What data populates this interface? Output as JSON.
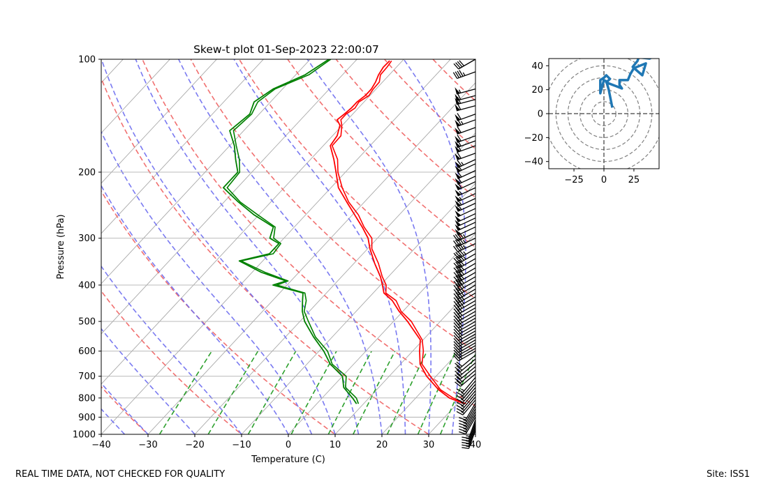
{
  "chart_data": [
    {
      "type": "skew-t",
      "title": "Skew-t plot 01-Sep-2023 22:00:07",
      "xlabel": "Temperature (C)",
      "ylabel": "Pressure (hPa)",
      "xlim": [
        -40,
        40
      ],
      "ylim": [
        1000,
        100
      ],
      "y_scale": "log",
      "x_ticks": [
        "−40",
        "−30",
        "−20",
        "−10",
        "0",
        "10",
        "20",
        "30",
        "40"
      ],
      "y_ticks": [
        "100",
        "200",
        "300",
        "400",
        "500",
        "600",
        "700",
        "800",
        "900",
        "1000"
      ],
      "grid": true,
      "series": [
        {
          "role": "temperature",
          "color": "#ff0000",
          "points": [
            [
              829,
              31.5
            ],
            [
              800,
              27.2
            ],
            [
              760,
              23.2
            ],
            [
              700,
              18.0
            ],
            [
              650,
              14.2
            ],
            [
              600,
              11.5
            ],
            [
              560,
              9.4
            ],
            [
              500,
              3.0
            ],
            [
              470,
              -0.8
            ],
            [
              440,
              -4.4
            ],
            [
              420,
              -7.7
            ],
            [
              400,
              -9.6
            ],
            [
              380,
              -11.7
            ],
            [
              350,
              -15.6
            ],
            [
              320,
              -19.5
            ],
            [
              300,
              -22.0
            ],
            [
              280,
              -25.5
            ],
            [
              260,
              -29.5
            ],
            [
              240,
              -33.8
            ],
            [
              220,
              -38.4
            ],
            [
              200,
              -42.0
            ],
            [
              185,
              -45.0
            ],
            [
              170,
              -48.5
            ],
            [
              160,
              -49.0
            ],
            [
              150,
              -50.5
            ],
            [
              145,
              -52.2
            ],
            [
              140,
              -51.8
            ],
            [
              135,
              -51.5
            ],
            [
              130,
              -51.5
            ],
            [
              125,
              -51.0
            ],
            [
              120,
              -51.0
            ],
            [
              115,
              -51.5
            ],
            [
              110,
              -52.3
            ],
            [
              105,
              -52.8
            ],
            [
              101,
              -52.7
            ]
          ]
        },
        {
          "role": "dewpoint",
          "color": "#008000",
          "points": [
            [
              829,
              8.5
            ],
            [
              800,
              6.5
            ],
            [
              750,
              2.5
            ],
            [
              700,
              0.0
            ],
            [
              650,
              -5.0
            ],
            [
              600,
              -9.0
            ],
            [
              550,
              -14.0
            ],
            [
              500,
              -19.0
            ],
            [
              470,
              -21.5
            ],
            [
              440,
              -23.6
            ],
            [
              420,
              -25.0
            ],
            [
              400,
              -33.0
            ],
            [
              390,
              -31.0
            ],
            [
              370,
              -38.0
            ],
            [
              345,
              -45.0
            ],
            [
              330,
              -40.0
            ],
            [
              310,
              -40.0
            ],
            [
              300,
              -43.0
            ],
            [
              280,
              -44.5
            ],
            [
              260,
              -51.0
            ],
            [
              240,
              -57.0
            ],
            [
              220,
              -63.0
            ],
            [
              200,
              -63.0
            ],
            [
              185,
              -66.0
            ],
            [
              170,
              -69.0
            ],
            [
              155,
              -73.0
            ],
            [
              140,
              -72.0
            ],
            [
              130,
              -73.5
            ],
            [
              120,
              -72.0
            ],
            [
              110,
              -68.0
            ],
            [
              100,
              -66.0
            ]
          ]
        }
      ],
      "wind_barbs": {
        "color": "#000000",
        "levels": [
          100,
          108,
          120,
          125,
          128,
          133,
          140,
          145,
          152,
          160,
          165,
          170,
          178,
          185,
          190,
          198,
          205,
          212,
          220,
          228,
          235,
          242,
          250,
          258,
          265,
          272,
          280,
          290,
          300,
          310,
          320,
          330,
          340,
          350,
          360,
          370,
          380,
          390,
          400,
          410,
          420,
          430,
          440,
          450,
          460,
          470,
          480,
          490,
          500,
          510,
          520,
          530,
          540,
          550,
          560,
          570,
          580,
          590,
          600,
          615,
          630,
          645,
          660,
          675,
          690,
          705,
          720,
          735,
          750,
          765,
          780,
          795,
          810,
          825,
          840,
          855,
          870,
          885,
          900,
          915,
          930,
          945,
          960,
          975
        ],
        "speed_kt": [
          40,
          45,
          55,
          60,
          60,
          60,
          60,
          65,
          60,
          60,
          60,
          60,
          60,
          65,
          60,
          60,
          60,
          60,
          55,
          55,
          55,
          55,
          50,
          50,
          50,
          50,
          50,
          45,
          45,
          45,
          45,
          45,
          40,
          40,
          40,
          40,
          40,
          40,
          35,
          35,
          35,
          35,
          35,
          30,
          30,
          30,
          30,
          30,
          30,
          25,
          25,
          25,
          25,
          25,
          25,
          25,
          25,
          25,
          25,
          20,
          20,
          20,
          20,
          20,
          20,
          15,
          15,
          15,
          15,
          15,
          15,
          15,
          15,
          15,
          15,
          15,
          15,
          15,
          15,
          15,
          15,
          15,
          15,
          15
        ],
        "direction_deg": [
          240,
          250,
          255,
          255,
          255,
          255,
          250,
          250,
          250,
          250,
          250,
          250,
          250,
          245,
          245,
          245,
          245,
          245,
          245,
          245,
          245,
          245,
          245,
          245,
          245,
          245,
          245,
          245,
          245,
          245,
          240,
          240,
          240,
          240,
          240,
          240,
          240,
          240,
          240,
          240,
          240,
          240,
          240,
          240,
          240,
          240,
          240,
          240,
          240,
          240,
          240,
          240,
          240,
          240,
          240,
          240,
          240,
          240,
          240,
          230,
          230,
          230,
          230,
          230,
          230,
          220,
          220,
          220,
          220,
          220,
          220,
          220,
          220,
          210,
          210,
          210,
          210,
          210,
          210,
          200,
          200,
          200,
          200,
          200
        ]
      },
      "reference_lines": {
        "isotherms": "gray solid",
        "dry_adiabats": "red dashed",
        "moist_adiabats": "blue dashed",
        "mixing_ratio_lines": "green dashed"
      }
    },
    {
      "type": "hodograph",
      "xlim": [
        -46,
        46
      ],
      "ylim": [
        -46,
        46
      ],
      "x_ticks": [
        "−25",
        "0",
        "25"
      ],
      "y_ticks": [
        "40",
        "20",
        "0",
        "−20",
        "−40"
      ],
      "rings": [
        10,
        20,
        30,
        40,
        50
      ],
      "color": "#1f77b4",
      "points": [
        [
          7,
          5
        ],
        [
          4,
          20
        ],
        [
          2,
          27
        ],
        [
          0,
          28
        ],
        [
          -3,
          17
        ],
        [
          -3,
          28
        ],
        [
          0,
          30
        ],
        [
          2,
          32
        ],
        [
          5,
          29
        ],
        [
          2,
          26
        ],
        [
          10,
          23
        ],
        [
          15,
          21
        ],
        [
          13,
          24
        ],
        [
          13,
          28
        ],
        [
          20,
          28
        ],
        [
          22,
          33
        ],
        [
          25,
          38
        ],
        [
          35,
          42
        ],
        [
          32,
          32
        ],
        [
          24,
          39
        ],
        [
          28,
          44
        ],
        [
          29,
          47
        ],
        [
          38,
          46
        ],
        [
          50,
          52
        ]
      ]
    }
  ],
  "footer": {
    "left_text": "REAL TIME DATA, NOT CHECKED FOR QUALITY",
    "right_text": "Site: ISS1"
  }
}
